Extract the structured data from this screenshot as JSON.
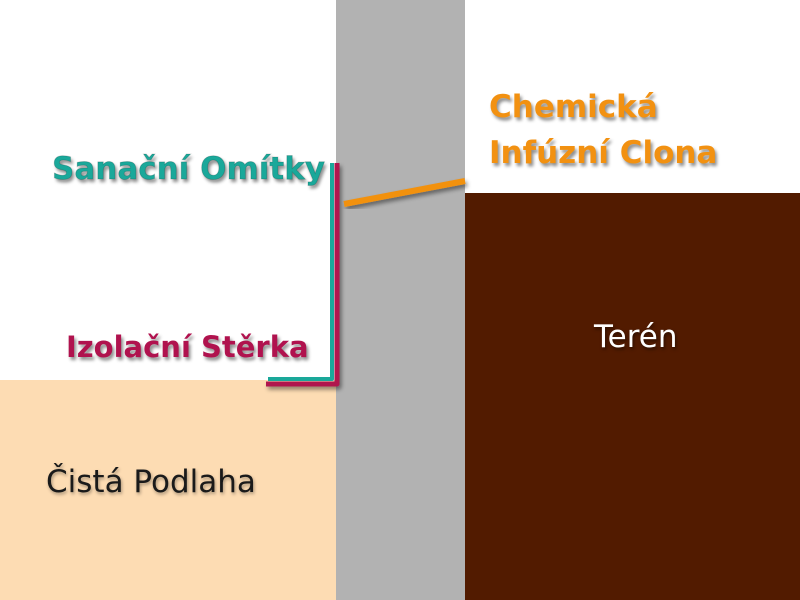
{
  "diagram": {
    "labels": {
      "sanacni_omitky": "Sanační Omítky",
      "izolacni_sterka": "Izolační Stěrka",
      "chemicka_line1": "Chemická",
      "chemicka_line2": "Infúzní Clona",
      "teren": "Terén",
      "cista_podlaha": "Čistá Podlaha"
    },
    "colors": {
      "background": "#ffffff",
      "floor": "#fddcb3",
      "wall": "#b2b2b2",
      "terrain": "#521b00",
      "plaster": "#1aa89a",
      "membrane": "#b0124e",
      "injection": "#f29111",
      "terrain_text": "#ffffff",
      "floor_text": "#1a1a1a"
    }
  }
}
